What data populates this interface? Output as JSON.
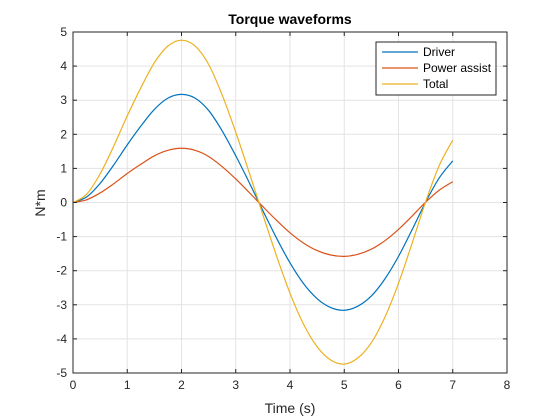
{
  "chart_data": {
    "type": "line",
    "title": "Torque waveforms",
    "xlabel": "Time (s)",
    "ylabel": "N*m",
    "xlim": [
      0,
      8
    ],
    "ylim": [
      -5,
      5
    ],
    "xticks": [
      0,
      1,
      2,
      3,
      4,
      5,
      6,
      7,
      8
    ],
    "yticks": [
      -5,
      -4,
      -3,
      -2,
      -1,
      0,
      1,
      2,
      3,
      4,
      5
    ],
    "grid": true,
    "legend_position": "top-right",
    "x": [
      0,
      0.25,
      0.5,
      0.75,
      1,
      1.25,
      1.5,
      1.75,
      2,
      2.25,
      2.5,
      2.75,
      3,
      3.25,
      3.5,
      3.75,
      4,
      4.25,
      4.5,
      4.75,
      5,
      5.25,
      5.5,
      5.75,
      6,
      6.25,
      6.5,
      6.75,
      7
    ],
    "series": [
      {
        "name": "Driver",
        "color": "#0072BD",
        "values": [
          0,
          0.16,
          0.56,
          1.1,
          1.69,
          2.24,
          2.73,
          3.06,
          3.17,
          3.06,
          2.7,
          2.1,
          1.37,
          0.58,
          -0.24,
          -1.04,
          -1.77,
          -2.38,
          -2.82,
          -3.08,
          -3.16,
          -3.04,
          -2.74,
          -2.24,
          -1.58,
          -0.8,
          0.01,
          0.72,
          1.22
        ]
      },
      {
        "name": "Power assist",
        "color": "#D95319",
        "values": [
          0,
          0.08,
          0.28,
          0.55,
          0.85,
          1.12,
          1.37,
          1.53,
          1.59,
          1.53,
          1.35,
          1.05,
          0.69,
          0.29,
          -0.12,
          -0.52,
          -0.89,
          -1.19,
          -1.41,
          -1.54,
          -1.58,
          -1.52,
          -1.37,
          -1.12,
          -0.79,
          -0.4,
          0.01,
          0.36,
          0.61
        ]
      },
      {
        "name": "Total",
        "color": "#EDB120",
        "values": [
          0,
          0.24,
          0.84,
          1.65,
          2.54,
          3.36,
          4.1,
          4.59,
          4.76,
          4.59,
          4.05,
          3.15,
          2.06,
          0.87,
          -0.36,
          -1.56,
          -2.66,
          -3.57,
          -4.23,
          -4.62,
          -4.74,
          -4.56,
          -4.11,
          -3.36,
          -2.37,
          -1.2,
          0.02,
          1.08,
          1.83
        ]
      }
    ]
  }
}
